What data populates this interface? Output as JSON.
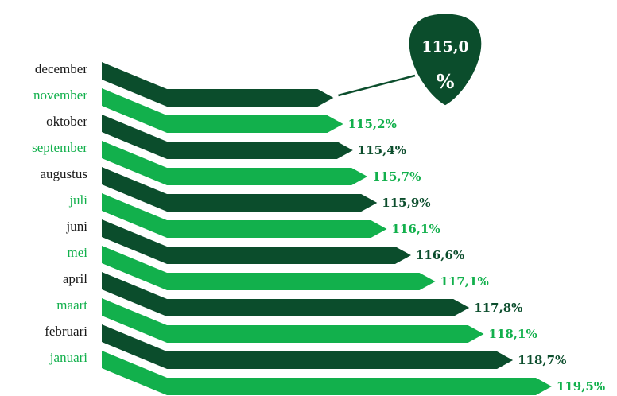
{
  "chart_data": {
    "type": "bar",
    "orientation": "horizontal",
    "categories": [
      "december",
      "november",
      "oktober",
      "september",
      "augustus",
      "juli",
      "juni",
      "mei",
      "april",
      "maart",
      "februari",
      "januari"
    ],
    "values": [
      115.0,
      115.2,
      115.4,
      115.7,
      115.9,
      116.1,
      116.6,
      117.1,
      117.8,
      118.1,
      118.7,
      119.5
    ],
    "value_labels": [
      "115,0 %",
      "115,2%",
      "115,4%",
      "115,7%",
      "115,9%",
      "116,1%",
      "116,6%",
      "117,1%",
      "117,8%",
      "118,1%",
      "118,7%",
      "119,5%"
    ],
    "colors": [
      "#0b4d2c",
      "#12b04c",
      "#0b4d2c",
      "#12b04c",
      "#0b4d2c",
      "#12b04c",
      "#0b4d2c",
      "#12b04c",
      "#0b4d2c",
      "#12b04c",
      "#0b4d2c",
      "#12b04c"
    ],
    "label_colors": [
      "#1a1a1a",
      "#12b04c",
      "#1a1a1a",
      "#12b04c",
      "#1a1a1a",
      "#12b04c",
      "#1a1a1a",
      "#12b04c",
      "#1a1a1a",
      "#12b04c",
      "#1a1a1a",
      "#12b04c"
    ],
    "xlim": [
      111.6,
      119.6
    ]
  }
}
